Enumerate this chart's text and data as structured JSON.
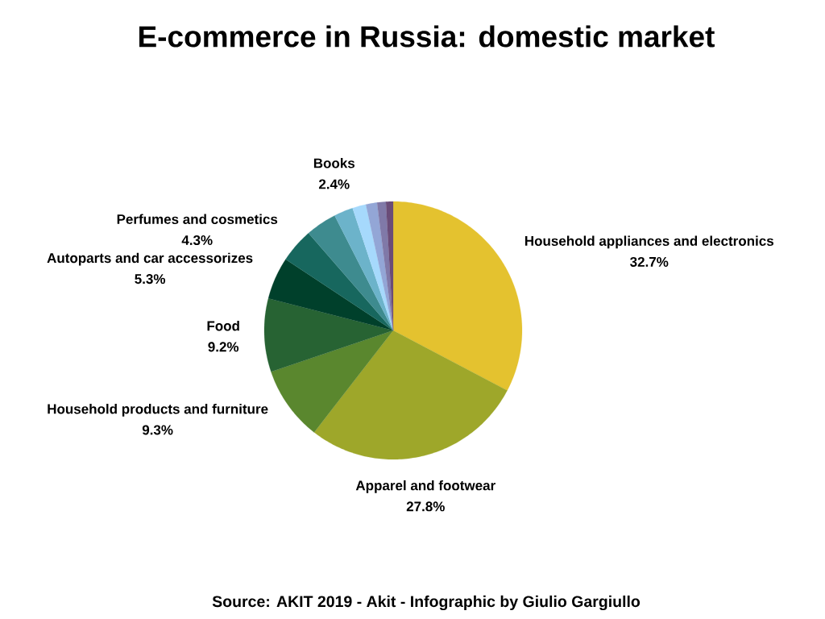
{
  "chart_data": {
    "type": "pie",
    "title": "E-commerce in Russia: domestic market",
    "categories": [
      "Household appliances and electronics",
      "Apparel and footwear",
      "Household products and furniture",
      "Food",
      "Autoparts and car accessorizes",
      "Perfumes and cosmetics",
      null,
      "Books",
      null,
      null,
      null,
      null
    ],
    "values": [
      32.7,
      27.8,
      9.3,
      9.2,
      5.3,
      4.3,
      3.9,
      2.4,
      1.7,
      1.4,
      1.1,
      0.9
    ],
    "colors": [
      "#e4c22f",
      "#9ea72a",
      "#5a872e",
      "#276333",
      "#00402b",
      "#17675e",
      "#3e8b8f",
      "#6cb3ca",
      "#a6d9fc",
      "#93a6d6",
      "#8079a8",
      "#6a4c78"
    ],
    "value_labels": [
      "32.7%",
      "27.8%",
      "9.3%",
      "9.2%",
      "5.3%",
      "4.3%",
      null,
      "2.4%",
      null,
      null,
      null,
      null
    ],
    "annotations": [
      "Source: AKIT 2019 - Akit - Infographic by Giulio Gargiullo"
    ]
  }
}
